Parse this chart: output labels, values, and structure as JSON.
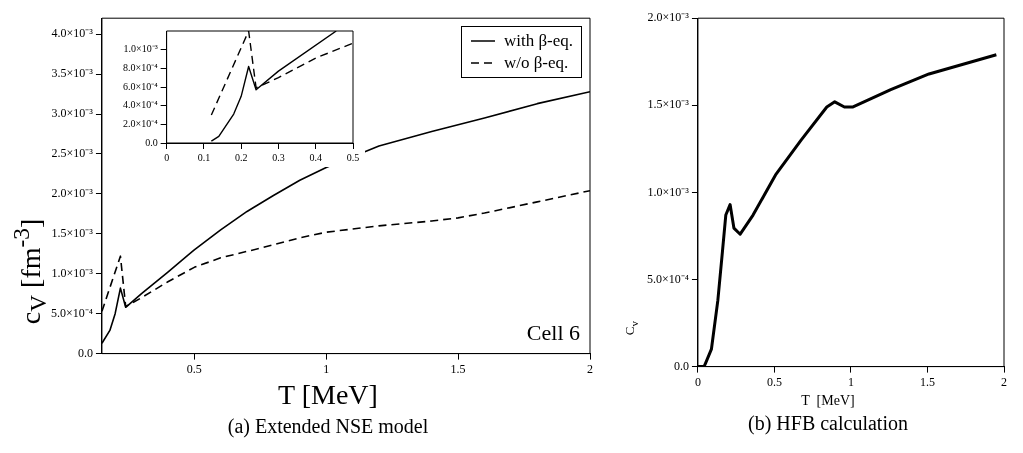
{
  "chart_data": [
    {
      "type": "line",
      "title": "(a) Extended NSE model",
      "xlabel": "T [MeV]",
      "ylabel": "c$_{V}$ [fm$^{-3}$]",
      "xlim": [
        0.15,
        2
      ],
      "xticks": [
        0.5,
        1,
        1.5,
        2
      ],
      "ylim": [
        0,
        0.0042
      ],
      "yticks": [
        {
          "value": 0,
          "label": "0.0"
        },
        {
          "value": 0.0005,
          "label": "5.0×10⁻⁴"
        },
        {
          "value": 0.001,
          "label": "1.0×10⁻³"
        },
        {
          "value": 0.0015,
          "label": "1.5×10⁻³"
        },
        {
          "value": 0.002,
          "label": "2.0×10⁻³"
        },
        {
          "value": 0.0025,
          "label": "2.5×10⁻³"
        },
        {
          "value": 0.003,
          "label": "3.0×10⁻³"
        },
        {
          "value": 0.0035,
          "label": "3.5×10⁻³"
        },
        {
          "value": 0.004,
          "label": "4.0×10⁻³"
        }
      ],
      "legend": "top right",
      "marker": "none",
      "annotations": [
        "Cell 6"
      ],
      "series": [
        {
          "name": "with β-eq.",
          "color": "#000000",
          "line_style": "solid",
          "x": [
            0.15,
            0.18,
            0.2,
            0.22,
            0.24,
            0.3,
            0.4,
            0.5,
            0.6,
            0.7,
            0.8,
            0.9,
            1.0,
            1.2,
            1.4,
            1.6,
            1.8,
            2.0
          ],
          "values": [
            0.00013,
            0.00029,
            0.0005,
            0.00082,
            0.00058,
            0.00075,
            0.00102,
            0.0013,
            0.00155,
            0.00178,
            0.00198,
            0.00217,
            0.00233,
            0.0026,
            0.00278,
            0.00295,
            0.00313,
            0.00328
          ]
        },
        {
          "name": "w/o β-eq.",
          "color": "#000000",
          "line_style": "dashed",
          "x": [
            0.15,
            0.22,
            0.24,
            0.3,
            0.4,
            0.5,
            0.6,
            0.75,
            0.9,
            1.0,
            1.2,
            1.4,
            1.5,
            1.6,
            1.8,
            2.0
          ],
          "values": [
            0.00053,
            0.00122,
            0.00059,
            0.0007,
            0.0009,
            0.00108,
            0.0012,
            0.00132,
            0.00145,
            0.00152,
            0.0016,
            0.00166,
            0.0017,
            0.00176,
            0.0019,
            0.00204
          ]
        }
      ]
    },
    {
      "type": "line",
      "xlim": [
        0,
        0.5
      ],
      "xticks": [
        0,
        0.1,
        0.2,
        0.3,
        0.4,
        0.5
      ],
      "ylim": [
        0,
        0.0012
      ],
      "yticks": [
        {
          "value": 0,
          "label": "0.0"
        },
        {
          "value": 0.0002,
          "label": "2.0×10⁻⁴"
        },
        {
          "value": 0.0004,
          "label": "4.0×10⁻⁴"
        },
        {
          "value": 0.0006,
          "label": "6.0×10⁻⁴"
        },
        {
          "value": 0.0008,
          "label": "8.0×10⁻⁴"
        },
        {
          "value": 0.001,
          "label": "1.0×10⁻³"
        }
      ],
      "marker": "none",
      "series": [
        {
          "color": "#000000",
          "line_style": "solid",
          "x": [
            0.12,
            0.14,
            0.18,
            0.2,
            0.22,
            0.24,
            0.3,
            0.455
          ],
          "values": [
            2e-05,
            7e-05,
            0.00031,
            0.0005,
            0.00082,
            0.00057,
            0.00077,
            0.0012
          ]
        },
        {
          "color": "#000000",
          "line_style": "dashed",
          "x": [
            0.12,
            0.22,
            0.24,
            0.3,
            0.4,
            0.5
          ],
          "values": [
            0.0003,
            0.0012,
            0.00059,
            0.0007,
            0.00091,
            0.00107
          ]
        }
      ]
    },
    {
      "type": "line",
      "title": "(b) HFB calculation",
      "xlabel": "T  [MeV]",
      "ylabel": "C$_{v}$",
      "xlim": [
        0,
        2
      ],
      "xticks": [
        0,
        0.5,
        1,
        1.5,
        2
      ],
      "ylim": [
        0,
        0.002
      ],
      "yticks": [
        {
          "value": 0,
          "label": "0.0"
        },
        {
          "value": 0.0005,
          "label": "5.0×10⁻⁴"
        },
        {
          "value": 0.001,
          "label": "1.0×10⁻³"
        },
        {
          "value": 0.0015,
          "label": "1.5×10⁻³"
        },
        {
          "value": 0.002,
          "label": "2.0×10⁻³"
        }
      ],
      "marker": "none",
      "series": [
        {
          "color": "#000000",
          "line_style": "solid",
          "x": [
            0,
            0.04,
            0.05,
            0.088,
            0.13,
            0.16,
            0.182,
            0.21,
            0.235,
            0.276,
            0.36,
            0.507,
            0.674,
            0.842,
            0.894,
            0.957,
            1.01,
            1.26,
            1.51,
            1.95
          ],
          "values": [
            0,
            0,
            2e-05,
            0.0001,
            0.00038,
            0.00066,
            0.00087,
            0.00093,
            0.000795,
            0.00076,
            0.00087,
            0.0011,
            0.0013,
            0.00149,
            0.00152,
            0.00149,
            0.00149,
            0.00159,
            0.00168,
            0.00179
          ]
        }
      ]
    }
  ]
}
